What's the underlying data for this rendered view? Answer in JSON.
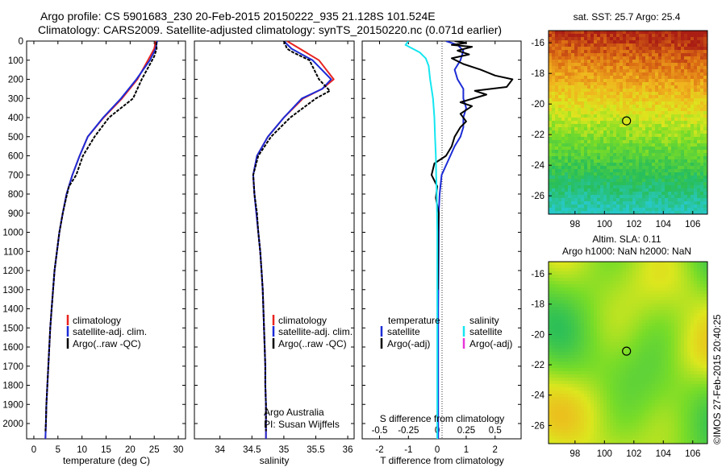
{
  "header": {
    "line1": "Argo profile: CS 5901683_230 20-Feb-2015 20150222_935 21.128S 101.524E",
    "line2": "Climatology: CARS2009. Satellite-adjusted climatology: synTS_20150220.nc (0.071d earlier)"
  },
  "colors": {
    "climatology": "#e8231f",
    "satellite": "#1c2cd6",
    "argo": "#000000",
    "cyan": "#14e6f0",
    "magenta": "#e636d8"
  },
  "temperature_panel": {
    "xlabel": "temperature (deg C)",
    "legend": [
      "climatology",
      "satellite-adj. clim.",
      "Argo(..raw -QC)"
    ]
  },
  "salinity_panel": {
    "xlabel": "salinity",
    "legend": [
      "climatology",
      "satellite-adj. clim.",
      "Argo(..raw -QC)"
    ],
    "credit1": "Argo Australia",
    "credit2": "PI: Susan Wijffels"
  },
  "difference_panel": {
    "top_label": "S difference from climatology",
    "xlabel": "T difference from climatology",
    "legend_temp_title": "temperature",
    "legend_sal_title": "salinity",
    "legend_temp": [
      "satellite",
      "Argo(-adj)"
    ],
    "legend_sal": [
      "satellite",
      "Argo(-adj)"
    ]
  },
  "sst_map": {
    "title": "sat. SST: 25.7 Argo: 25.4"
  },
  "sla_map": {
    "title1": "Altim. SLA: 0.11",
    "title2": "Argo h1000: NaN h2000: NaN"
  },
  "credit_vertical": "©IMOS 27-Feb-2015 20:40:25",
  "chart_data": [
    {
      "type": "line",
      "name": "temperature profile",
      "xlabel": "temperature (deg C)",
      "ylabel": "",
      "xlim": [
        -1.5,
        31.5
      ],
      "ylim": [
        2080,
        0
      ],
      "xticks": [
        0,
        5,
        10,
        15,
        20,
        25,
        30
      ],
      "yticks": [
        0,
        100,
        200,
        300,
        400,
        500,
        600,
        700,
        800,
        900,
        1000,
        1100,
        1200,
        1300,
        1400,
        1500,
        1600,
        1700,
        1800,
        1900,
        2000
      ],
      "series": [
        {
          "name": "climatology",
          "points": [
            [
              25.3,
              0
            ],
            [
              25.0,
              40
            ],
            [
              23.7,
              100
            ],
            [
              21.5,
              200
            ],
            [
              18.3,
              300
            ],
            [
              14.5,
              400
            ],
            [
              11.2,
              500
            ],
            [
              9.5,
              600
            ],
            [
              8.0,
              700
            ],
            [
              6.8,
              800
            ],
            [
              6.0,
              900
            ],
            [
              5.3,
              1000
            ],
            [
              4.8,
              1100
            ],
            [
              4.3,
              1200
            ],
            [
              4.0,
              1300
            ],
            [
              3.7,
              1400
            ],
            [
              3.4,
              1500
            ],
            [
              3.2,
              1600
            ],
            [
              3.0,
              1700
            ],
            [
              2.8,
              1800
            ],
            [
              2.6,
              1900
            ],
            [
              2.5,
              2000
            ],
            [
              2.4,
              2080
            ]
          ]
        },
        {
          "name": "satellite-adj. clim.",
          "points": [
            [
              25.6,
              0
            ],
            [
              25.3,
              40
            ],
            [
              24.1,
              100
            ],
            [
              21.3,
              200
            ],
            [
              18.1,
              300
            ],
            [
              14.4,
              400
            ],
            [
              11.2,
              500
            ],
            [
              9.5,
              600
            ],
            [
              8.0,
              700
            ],
            [
              6.8,
              800
            ],
            [
              6.0,
              900
            ],
            [
              5.3,
              1000
            ],
            [
              4.8,
              1100
            ],
            [
              4.3,
              1200
            ],
            [
              4.0,
              1300
            ],
            [
              3.7,
              1400
            ],
            [
              3.4,
              1500
            ],
            [
              3.2,
              1600
            ],
            [
              3.0,
              1700
            ],
            [
              2.8,
              1800
            ],
            [
              2.6,
              1900
            ],
            [
              2.5,
              2000
            ],
            [
              2.4,
              2080
            ]
          ]
        },
        {
          "name": "Argo(..raw -QC)",
          "points": [
            [
              25.4,
              5
            ],
            [
              25.5,
              40
            ],
            [
              25.0,
              80
            ],
            [
              22.4,
              200
            ],
            [
              20.6,
              300
            ],
            [
              15.6,
              400
            ],
            [
              12.6,
              500
            ],
            [
              10.2,
              600
            ],
            [
              8.8,
              700
            ],
            [
              7.3,
              760
            ],
            [
              6.7,
              820
            ],
            [
              6.0,
              900
            ],
            [
              5.3,
              1000
            ],
            [
              4.8,
              1100
            ],
            [
              4.3,
              1200
            ],
            [
              4.0,
              1300
            ],
            [
              3.7,
              1400
            ],
            [
              3.4,
              1500
            ],
            [
              3.2,
              1600
            ],
            [
              3.0,
              1700
            ],
            [
              2.8,
              1800
            ],
            [
              2.6,
              1900
            ],
            [
              2.5,
              2000
            ],
            [
              2.4,
              2040
            ]
          ]
        }
      ]
    },
    {
      "type": "line",
      "name": "salinity profile",
      "xlabel": "salinity",
      "xlim": [
        33.6,
        36.1
      ],
      "ylim": [
        2080,
        0
      ],
      "xticks": [
        34,
        34.5,
        35,
        35.5,
        36
      ],
      "series": [
        {
          "name": "climatology",
          "points": [
            [
              35.05,
              0
            ],
            [
              35.25,
              40
            ],
            [
              35.55,
              100
            ],
            [
              35.78,
              200
            ],
            [
              35.6,
              250
            ],
            [
              35.3,
              300
            ],
            [
              35.0,
              400
            ],
            [
              34.75,
              500
            ],
            [
              34.58,
              600
            ],
            [
              34.52,
              700
            ],
            [
              34.54,
              800
            ],
            [
              34.57,
              900
            ],
            [
              34.6,
              1000
            ],
            [
              34.63,
              1100
            ],
            [
              34.65,
              1200
            ],
            [
              34.67,
              1300
            ],
            [
              34.68,
              1400
            ],
            [
              34.69,
              1500
            ],
            [
              34.7,
              1600
            ],
            [
              34.71,
              1700
            ],
            [
              34.71,
              1800
            ],
            [
              34.72,
              1900
            ],
            [
              34.72,
              2000
            ],
            [
              34.72,
              2080
            ]
          ]
        },
        {
          "name": "satellite-adj. clim.",
          "points": [
            [
              35.0,
              0
            ],
            [
              35.12,
              40
            ],
            [
              35.45,
              100
            ],
            [
              35.74,
              200
            ],
            [
              35.6,
              250
            ],
            [
              35.28,
              300
            ],
            [
              35.0,
              400
            ],
            [
              34.75,
              500
            ],
            [
              34.58,
              600
            ],
            [
              34.52,
              700
            ],
            [
              34.54,
              800
            ],
            [
              34.57,
              900
            ],
            [
              34.6,
              1000
            ],
            [
              34.63,
              1100
            ],
            [
              34.65,
              1200
            ],
            [
              34.67,
              1300
            ],
            [
              34.68,
              1400
            ],
            [
              34.69,
              1500
            ],
            [
              34.7,
              1600
            ],
            [
              34.71,
              1700
            ],
            [
              34.71,
              1800
            ],
            [
              34.72,
              1900
            ],
            [
              34.72,
              2000
            ],
            [
              34.72,
              2080
            ]
          ]
        },
        {
          "name": "Argo(..raw -QC)",
          "points": [
            [
              35.0,
              0
            ],
            [
              35.05,
              40
            ],
            [
              35.15,
              60
            ],
            [
              35.4,
              100
            ],
            [
              35.55,
              200
            ],
            [
              35.72,
              260
            ],
            [
              35.5,
              300
            ],
            [
              35.1,
              400
            ],
            [
              34.8,
              500
            ],
            [
              34.6,
              600
            ],
            [
              34.52,
              700
            ],
            [
              34.54,
              800
            ],
            [
              34.58,
              900
            ],
            [
              34.6,
              1000
            ],
            [
              34.63,
              1100
            ],
            [
              34.65,
              1200
            ],
            [
              34.67,
              1300
            ],
            [
              34.68,
              1400
            ],
            [
              34.69,
              1500
            ],
            [
              34.7,
              1600
            ],
            [
              34.71,
              1700
            ],
            [
              34.71,
              1800
            ],
            [
              34.72,
              1900
            ],
            [
              34.72,
              2000
            ],
            [
              34.72,
              2040
            ]
          ]
        }
      ]
    },
    {
      "type": "line",
      "name": "difference from climatology",
      "xlabel": "T difference from climatology",
      "top_label": "S difference from climatology",
      "xlim": [
        -2.6,
        2.9
      ],
      "ylim": [
        2080,
        0
      ],
      "xticks": [
        -2,
        -1,
        0,
        1,
        2
      ],
      "top_ticks": [
        -0.5,
        -0.25,
        0,
        0.25,
        0.5
      ],
      "series": [
        {
          "name": "temperature satellite",
          "points": [
            [
              0.3,
              0
            ],
            [
              0.7,
              20
            ],
            [
              0.9,
              50
            ],
            [
              0.8,
              100
            ],
            [
              0.6,
              150
            ],
            [
              0.7,
              200
            ],
            [
              0.9,
              250
            ],
            [
              0.9,
              300
            ],
            [
              1.0,
              350
            ],
            [
              0.9,
              400
            ],
            [
              0.9,
              450
            ],
            [
              0.8,
              500
            ],
            [
              0.6,
              550
            ],
            [
              0.3,
              650
            ],
            [
              0.15,
              700
            ],
            [
              0.08,
              800
            ],
            [
              0.05,
              900
            ],
            [
              0.05,
              1000
            ],
            [
              0.04,
              1200
            ],
            [
              0.03,
              1400
            ],
            [
              0.03,
              1600
            ],
            [
              0.03,
              1800
            ],
            [
              0.03,
              2000
            ],
            [
              0.03,
              2080
            ]
          ]
        },
        {
          "name": "temperature Argo(-adj)",
          "points": [
            [
              0.6,
              0
            ],
            [
              1.0,
              10
            ],
            [
              0.5,
              20
            ],
            [
              1.2,
              30
            ],
            [
              0.7,
              50
            ],
            [
              1.1,
              70
            ],
            [
              0.5,
              90
            ],
            [
              0.9,
              120
            ],
            [
              1.5,
              150
            ],
            [
              2.0,
              180
            ],
            [
              2.6,
              200
            ],
            [
              2.4,
              240
            ],
            [
              1.3,
              260
            ],
            [
              1.7,
              280
            ],
            [
              0.8,
              320
            ],
            [
              1.2,
              340
            ],
            [
              0.8,
              380
            ],
            [
              1.0,
              420
            ],
            [
              0.8,
              450
            ],
            [
              0.6,
              500
            ],
            [
              0.5,
              550
            ],
            [
              0.3,
              600
            ],
            [
              -0.1,
              640
            ],
            [
              -0.2,
              700
            ],
            [
              0.0,
              760
            ],
            [
              -0.05,
              820
            ],
            [
              0.05,
              900
            ],
            [
              0.03,
              1000
            ],
            [
              0.03,
              1100
            ],
            [
              0.02,
              1300
            ]
          ]
        },
        {
          "name": "salinity satellite",
          "points": [
            [
              -1.0,
              0
            ],
            [
              -1.1,
              20
            ],
            [
              -0.85,
              40
            ],
            [
              -0.6,
              60
            ],
            [
              -0.4,
              90
            ],
            [
              -0.3,
              130
            ],
            [
              -0.25,
              200
            ],
            [
              -0.2,
              250
            ],
            [
              -0.15,
              300
            ],
            [
              -0.1,
              400
            ],
            [
              -0.08,
              500
            ],
            [
              -0.05,
              600
            ],
            [
              -0.04,
              700
            ],
            [
              -0.02,
              800
            ],
            [
              -0.01,
              900
            ],
            [
              0.0,
              1000
            ],
            [
              0.0,
              1200
            ],
            [
              0.0,
              1500
            ],
            [
              0.0,
              1800
            ],
            [
              0.0,
              2080
            ]
          ]
        }
      ]
    }
  ],
  "map_data": {
    "sst": {
      "xticks": [
        98,
        100,
        102,
        104,
        106
      ],
      "yticks": [
        -16,
        -18,
        -20,
        -22,
        -24,
        -26
      ],
      "xlim": [
        96.2,
        107
      ],
      "ylim": [
        -27.2,
        -15.2
      ],
      "marker": [
        101.5,
        -21.1
      ]
    },
    "sla": {
      "xticks": [
        98,
        100,
        102,
        104,
        106
      ],
      "yticks": [
        -16,
        -18,
        -20,
        -22,
        -24,
        -26
      ],
      "xlim": [
        96.2,
        107
      ],
      "ylim": [
        -27.2,
        -15.2
      ],
      "marker": [
        101.5,
        -21.1
      ]
    }
  }
}
